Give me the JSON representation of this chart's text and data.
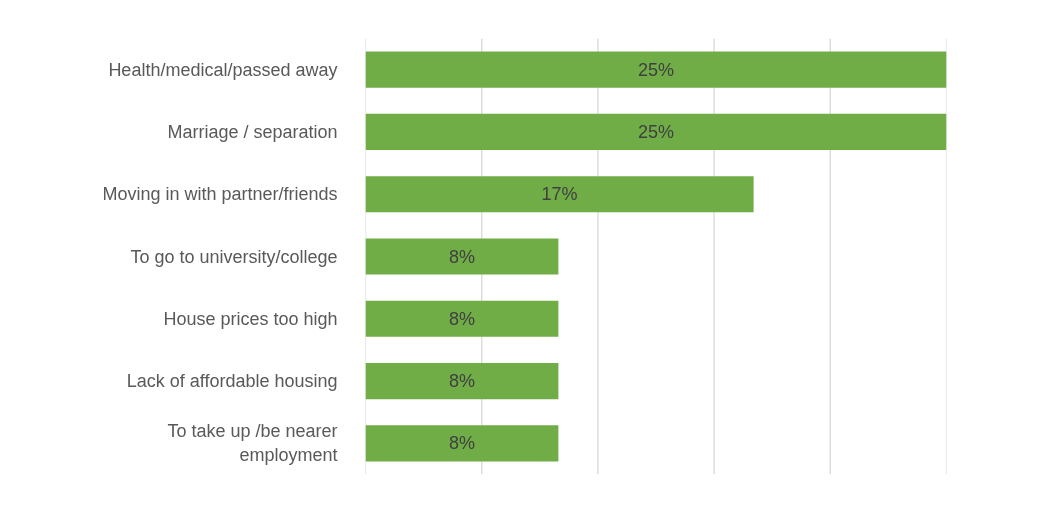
{
  "chart_data": {
    "type": "bar",
    "orientation": "horizontal",
    "categories": [
      "Health/medical/passed away",
      "Marriage / separation",
      "Moving in with partner/friends",
      "To go to university/college",
      "House prices too high",
      "Lack of affordable housing",
      "To take up /be nearer\nemployment"
    ],
    "values": [
      25,
      25,
      16.7,
      8.3,
      8.3,
      8.3,
      8.3
    ],
    "value_labels": [
      "25%",
      "25%",
      "17%",
      "8%",
      "8%",
      "8%",
      "8%"
    ],
    "color": "#70ad47",
    "xlim": [
      0,
      25
    ],
    "xticks": [
      {
        "value": 0,
        "label": null
      },
      {
        "value": 5,
        "label": null
      },
      {
        "value": 10,
        "label": null
      },
      {
        "value": 15,
        "label": null
      },
      {
        "value": 20,
        "label": null
      },
      {
        "value": 25,
        "label": null
      }
    ],
    "grid": "x",
    "tick_labels": "y"
  }
}
